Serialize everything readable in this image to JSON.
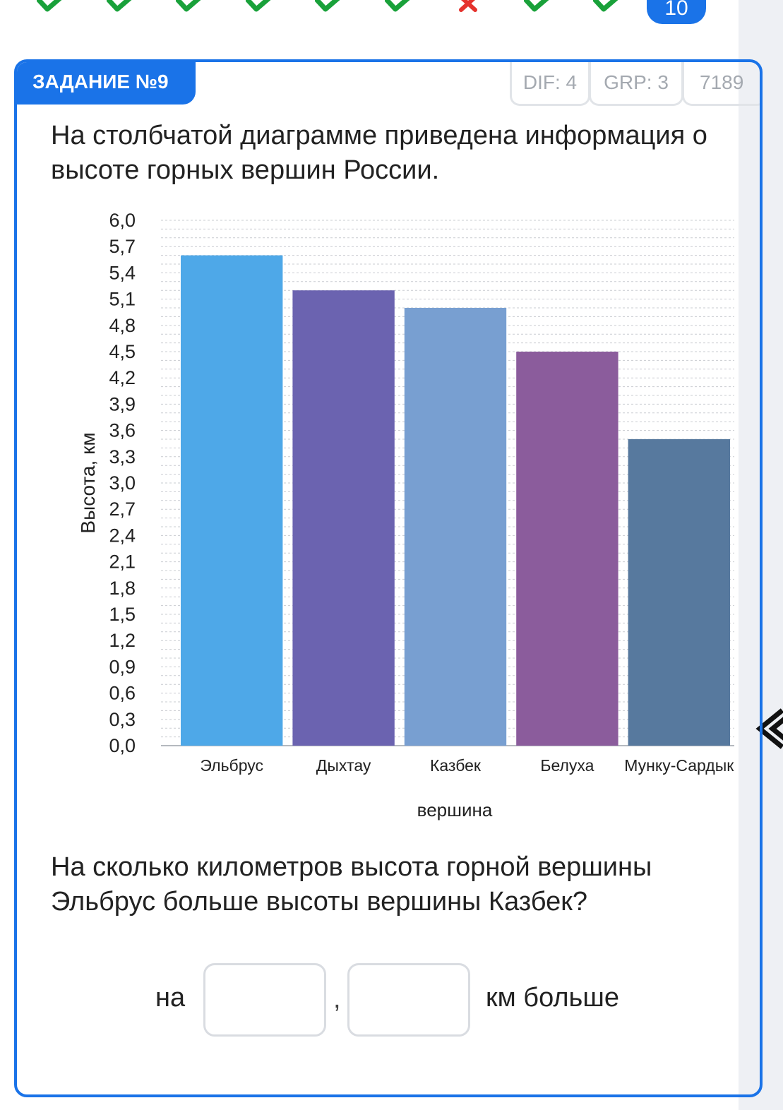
{
  "progress": {
    "items": [
      {
        "status": "correct",
        "icon": "check-icon"
      },
      {
        "status": "correct",
        "icon": "check-icon"
      },
      {
        "status": "correct",
        "icon": "check-icon"
      },
      {
        "status": "correct",
        "icon": "check-icon"
      },
      {
        "status": "correct",
        "icon": "check-icon"
      },
      {
        "status": "correct",
        "icon": "check-icon"
      },
      {
        "status": "wrong",
        "icon": "cross-icon"
      },
      {
        "status": "correct",
        "icon": "check-icon"
      },
      {
        "status": "correct",
        "icon": "check-icon"
      }
    ],
    "current_label": "10",
    "colors": {
      "correct": "#19a13a",
      "wrong": "#e5322d",
      "accent": "#1a73e8"
    }
  },
  "task": {
    "label": "ЗАДАНИЕ №9",
    "dif": "DIF: 4",
    "grp": "GRP: 3",
    "id": "7189",
    "question_top": "На столбчатой диаграмме приведена информация о высоте горных вершин России.",
    "question_bottom": "На сколько километров высота горной вершины Эльбрус больше высоты вершины Казбек?"
  },
  "answer": {
    "prefix": "на",
    "separator": ",",
    "suffix": "км больше",
    "value_1": "",
    "value_2": ""
  },
  "chart_data": {
    "type": "bar",
    "categories": [
      "Эльбрус",
      "Дыхтау",
      "Казбек",
      "Белуха",
      "Мунку-Сардык"
    ],
    "values": [
      5.6,
      5.2,
      5.0,
      4.5,
      3.5
    ],
    "colors": [
      "#4ea8e8",
      "#6b63b0",
      "#789fd1",
      "#8b5c9c",
      "#57799e"
    ],
    "xlabel": "вершина",
    "ylabel": "Высота, км",
    "ylim": [
      0,
      6
    ],
    "yticks": [
      "0,0",
      "0,3",
      "0,6",
      "0,9",
      "1,2",
      "1,5",
      "1,8",
      "2,1",
      "2,4",
      "2,7",
      "3,0",
      "3,3",
      "3,6",
      "3,9",
      "4,2",
      "4,5",
      "4,8",
      "5,1",
      "5,4",
      "5,7",
      "6,0"
    ],
    "grid": true
  }
}
